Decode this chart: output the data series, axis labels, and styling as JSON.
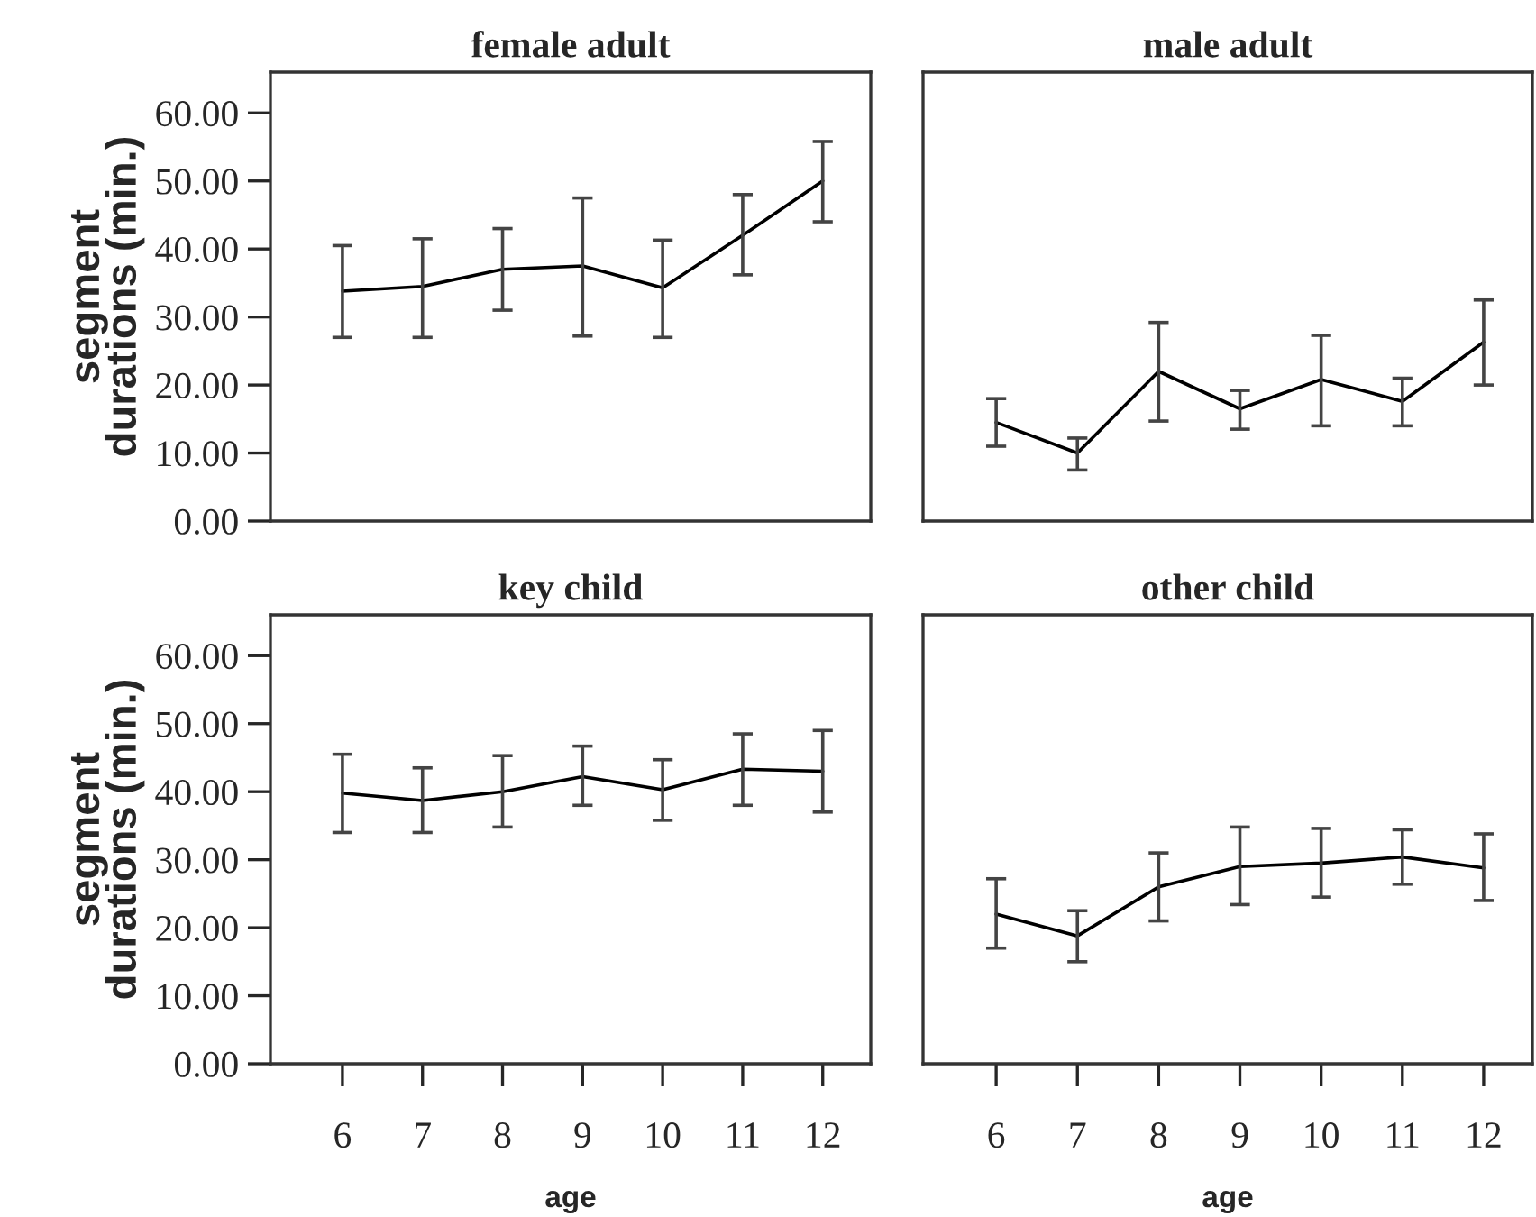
{
  "chart_data": [
    {
      "type": "line",
      "title": "female adult",
      "ylabel": "segment\ndurations (min.)",
      "x": [
        6,
        7,
        8,
        9,
        10,
        11,
        12
      ],
      "xlim": [
        5.1,
        12.6
      ],
      "ylim": [
        0,
        66
      ],
      "yticks": [
        {
          "value": 0,
          "label": "0.00"
        },
        {
          "value": 10,
          "label": "10.00"
        },
        {
          "value": 20,
          "label": "20.00"
        },
        {
          "value": 30,
          "label": "30.00"
        },
        {
          "value": 40,
          "label": "40.00"
        },
        {
          "value": 50,
          "label": "50.00"
        },
        {
          "value": 60,
          "label": "60.00"
        }
      ],
      "tick_labels": "y",
      "marker": "none",
      "line_style": "solid",
      "series": [
        {
          "color": "#000000",
          "values": [
            33.8,
            34.5,
            37,
            37.5,
            34.3,
            42,
            50
          ],
          "errors": [
            [
              27,
              40.5
            ],
            [
              27,
              41.5
            ],
            [
              31,
              43
            ],
            [
              27.2,
              47.5
            ],
            [
              27,
              41.3
            ],
            [
              36.2,
              48
            ],
            [
              44,
              55.8
            ]
          ]
        }
      ]
    },
    {
      "type": "line",
      "title": "male adult",
      "x": [
        6,
        7,
        8,
        9,
        10,
        11,
        12
      ],
      "xlim": [
        5.1,
        12.6
      ],
      "ylim": [
        0,
        66
      ],
      "tick_labels": false,
      "marker": "none",
      "line_style": "solid",
      "series": [
        {
          "color": "#000000",
          "values": [
            14.5,
            10,
            22,
            16.5,
            20.8,
            17.6,
            26.3
          ],
          "errors": [
            [
              11,
              18
            ],
            [
              7.5,
              12.2
            ],
            [
              14.7,
              29.2
            ],
            [
              13.5,
              19.2
            ],
            [
              14,
              27.3
            ],
            [
              14,
              21
            ],
            [
              20,
              32.5
            ]
          ]
        }
      ]
    },
    {
      "type": "line",
      "title": "key child",
      "xlabel": "age",
      "ylabel": "segment\ndurations (min.)",
      "x": [
        6,
        7,
        8,
        9,
        10,
        11,
        12
      ],
      "xlim": [
        5.1,
        12.6
      ],
      "xticks": [
        6,
        7,
        8,
        9,
        10,
        11,
        12
      ],
      "ylim": [
        0,
        66
      ],
      "yticks": [
        {
          "value": 0,
          "label": "0.00"
        },
        {
          "value": 10,
          "label": "10.00"
        },
        {
          "value": 20,
          "label": "20.00"
        },
        {
          "value": 30,
          "label": "30.00"
        },
        {
          "value": 40,
          "label": "40.00"
        },
        {
          "value": 50,
          "label": "50.00"
        },
        {
          "value": 60,
          "label": "60.00"
        }
      ],
      "marker": "none",
      "line_style": "solid",
      "series": [
        {
          "color": "#000000",
          "values": [
            39.8,
            38.7,
            40,
            42.2,
            40.3,
            43.3,
            43
          ],
          "errors": [
            [
              34,
              45.5
            ],
            [
              34,
              43.5
            ],
            [
              34.8,
              45.3
            ],
            [
              38,
              46.7
            ],
            [
              35.8,
              44.7
            ],
            [
              38,
              48.5
            ],
            [
              37,
              49
            ]
          ]
        }
      ]
    },
    {
      "type": "line",
      "title": "other child",
      "xlabel": "age",
      "x": [
        6,
        7,
        8,
        9,
        10,
        11,
        12
      ],
      "xlim": [
        5.1,
        12.6
      ],
      "xticks": [
        6,
        7,
        8,
        9,
        10,
        11,
        12
      ],
      "ylim": [
        0,
        66
      ],
      "tick_labels": "x",
      "marker": "none",
      "line_style": "solid",
      "series": [
        {
          "color": "#000000",
          "values": [
            22,
            18.8,
            26,
            29,
            29.5,
            30.4,
            28.8
          ],
          "errors": [
            [
              17,
              27.2
            ],
            [
              15,
              22.5
            ],
            [
              21,
              31
            ],
            [
              23.4,
              34.8
            ],
            [
              24.5,
              34.6
            ],
            [
              26.4,
              34.4
            ],
            [
              24,
              33.8
            ]
          ]
        }
      ]
    }
  ]
}
